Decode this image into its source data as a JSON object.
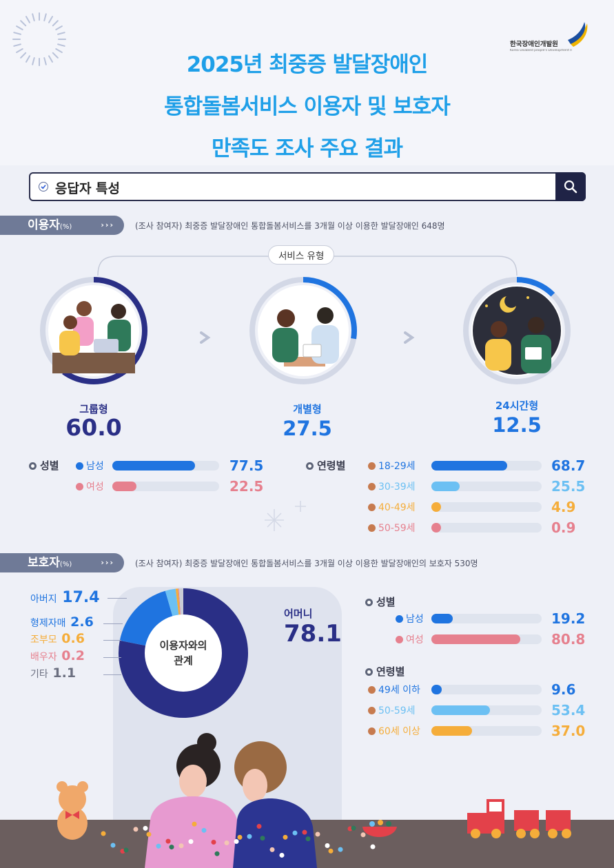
{
  "title_lines": [
    "2025년 최중증 발달장애인",
    "통합돌봄서비스 이용자 및 보호자",
    "만족도 조사 주요 결과"
  ],
  "logo": {
    "name": "한국장애인개발원",
    "sub": "Korea Disabled people's Development Institute"
  },
  "search": {
    "label": "응답자 특성",
    "icon": "search-icon"
  },
  "users": {
    "tab": "이용자",
    "tab_unit": "(%)",
    "desc": "(조사 참여자) 최중증 발달장애인 통합돌봄서비스를  3개월 이상 이용한 발달장애인 648명",
    "service_pill": "서비스 유형",
    "gender_title": "성별",
    "age_title": "연령별"
  },
  "guardians": {
    "tab": "보호자",
    "tab_unit": "(%)",
    "desc": "(조사 참여자) 최중증 발달장애인 통합돌봄서비스를  3개월 이상 이용한 발달장애인의 보호자 530명",
    "donut_center": [
      "이용자와의",
      "관계"
    ],
    "gender_title": "성별",
    "age_title": "연령별"
  },
  "colors": {
    "title": "#1e9fe8",
    "navy": "#2a2f86",
    "blue": "#1f74e0",
    "lightblue": "#6cc0f3",
    "orange": "#f5ad3a",
    "pink": "#e6808e",
    "track": "#dfe4ee"
  },
  "chart_data": [
    {
      "type": "bar",
      "group": "이용자 서비스 유형",
      "categories": [
        "그룹형",
        "개별형",
        "24시간형"
      ],
      "values": [
        60.0,
        27.5,
        12.5
      ],
      "display": [
        "60.0",
        "27.5",
        "12.5"
      ],
      "colors": [
        "#2a2f86",
        "#1f74e0",
        "#1f74e0"
      ]
    },
    {
      "type": "bar",
      "group": "이용자 성별",
      "categories": [
        "남성",
        "여성"
      ],
      "values": [
        77.5,
        22.5
      ],
      "display": [
        "77.5",
        "22.5"
      ],
      "colors": [
        "#1f74e0",
        "#e6808e"
      ],
      "ylim": [
        0,
        100
      ]
    },
    {
      "type": "bar",
      "group": "이용자 연령별",
      "categories": [
        "18-29세",
        "30-39세",
        "40-49세",
        "50-59세"
      ],
      "values": [
        68.7,
        25.5,
        4.9,
        0.9
      ],
      "display": [
        "68.7",
        "25.5",
        "4.9",
        "0.9"
      ],
      "colors": [
        "#1f74e0",
        "#6cc0f3",
        "#f5ad3a",
        "#e6808e"
      ],
      "ylim": [
        0,
        100
      ]
    },
    {
      "type": "pie",
      "group": "보호자 이용자와의 관계",
      "categories": [
        "어머니",
        "아버지",
        "형제자매",
        "조부모",
        "배우자",
        "기타"
      ],
      "values": [
        78.1,
        17.4,
        2.6,
        0.6,
        0.2,
        1.1
      ],
      "display": [
        "78.1",
        "17.4",
        "2.6",
        "0.6",
        "0.2",
        "1.1"
      ],
      "colors": [
        "#2a2f86",
        "#1f74e0",
        "#6cc0f3",
        "#f5ad3a",
        "#e6808e",
        "#c9ccd6"
      ]
    },
    {
      "type": "bar",
      "group": "보호자 성별",
      "categories": [
        "남성",
        "여성"
      ],
      "values": [
        19.2,
        80.8
      ],
      "display": [
        "19.2",
        "80.8"
      ],
      "colors": [
        "#1f74e0",
        "#e6808e"
      ],
      "ylim": [
        0,
        100
      ]
    },
    {
      "type": "bar",
      "group": "보호자 연령별",
      "categories": [
        "49세 이하",
        "50-59세",
        "60세 이상"
      ],
      "values": [
        9.6,
        53.4,
        37.0
      ],
      "display": [
        "9.6",
        "53.4",
        "37.0"
      ],
      "colors": [
        "#1f74e0",
        "#6cc0f3",
        "#f5ad3a"
      ],
      "ylim": [
        0,
        100
      ]
    }
  ]
}
